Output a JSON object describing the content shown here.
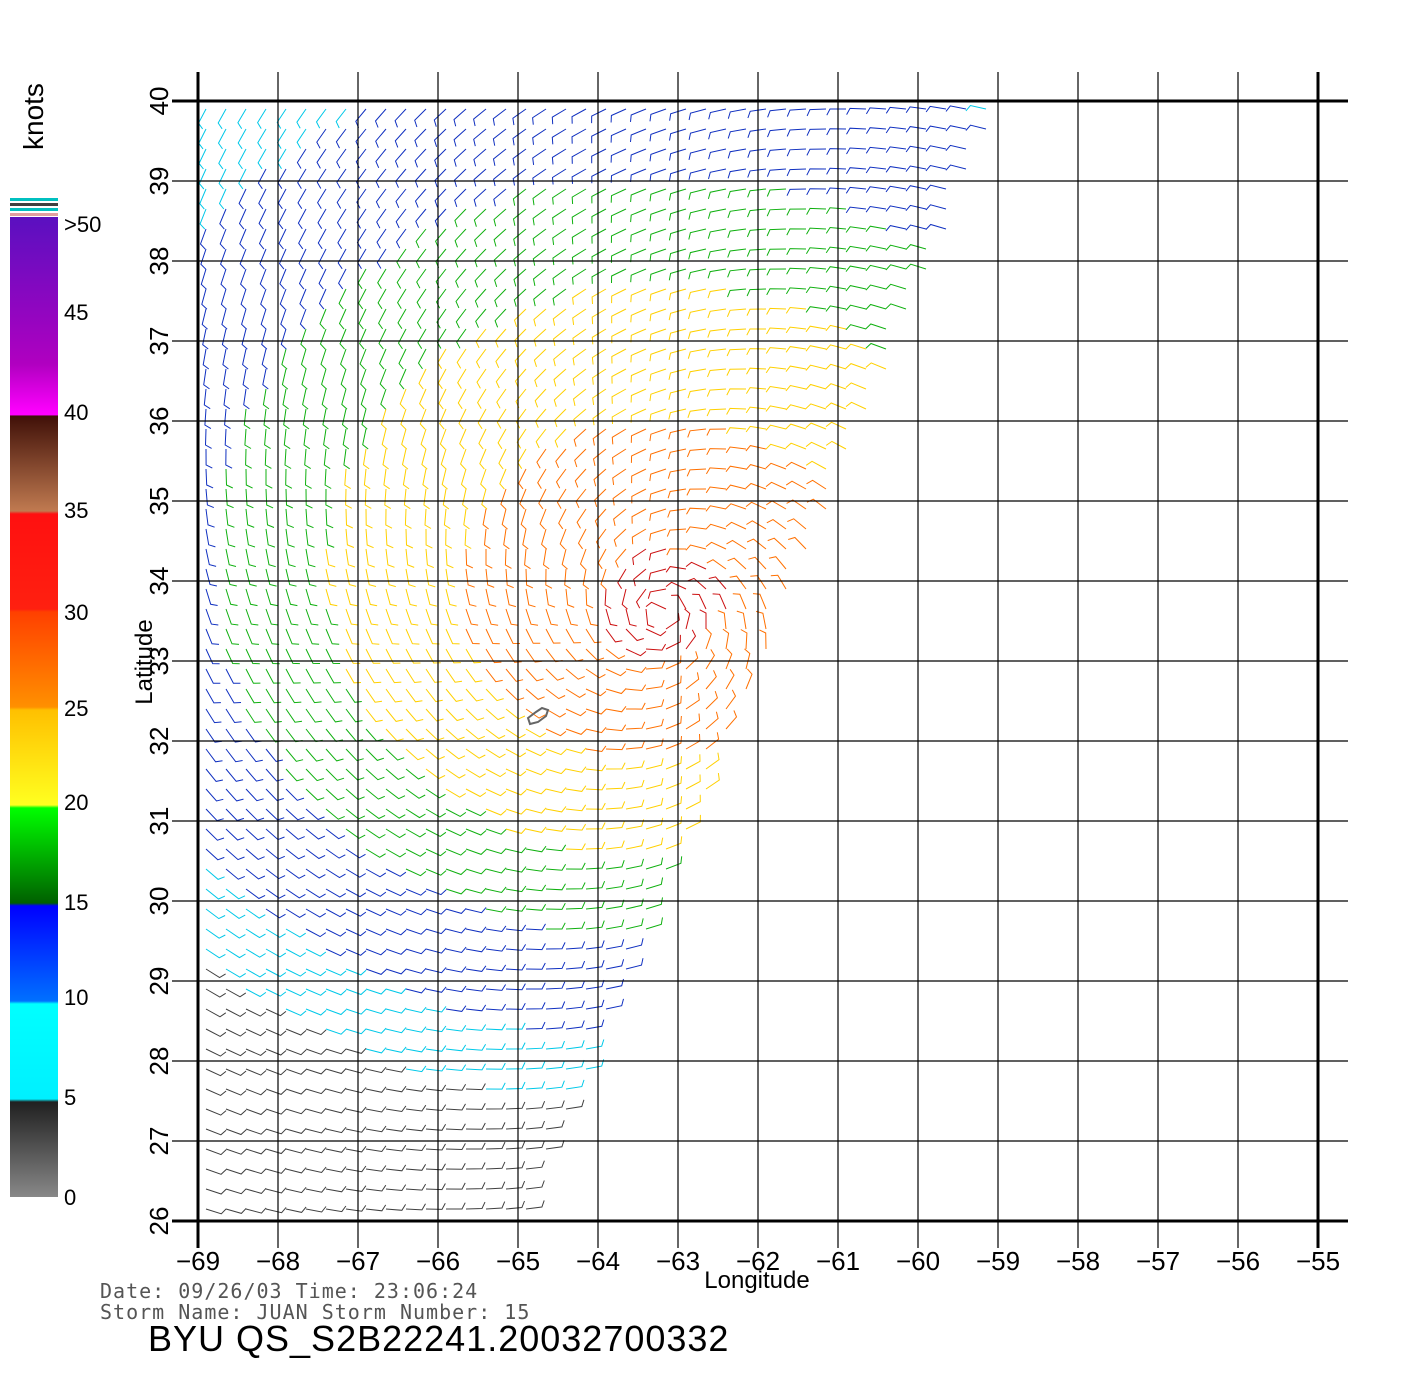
{
  "map": {
    "xlabel": "Longitude",
    "ylabel": "Latitude",
    "lon_ticks": [
      "-69",
      "-68",
      "-67",
      "-66",
      "-65",
      "-64",
      "-63",
      "-62",
      "-61",
      "-60",
      "-59",
      "-58",
      "-57",
      "-56",
      "-55"
    ],
    "lat_ticks": [
      "26",
      "27",
      "28",
      "29",
      "30",
      "31",
      "32",
      "33",
      "34",
      "35",
      "36",
      "37",
      "38",
      "39",
      "40"
    ],
    "lon_range": [
      -69,
      -55
    ],
    "lat_range": [
      26,
      40
    ],
    "grid": true
  },
  "colorbar": {
    "unit": "knots",
    "labels": [
      ">50",
      "45",
      "40",
      "35",
      "30",
      "25",
      "20",
      "15",
      "10",
      "5",
      "0"
    ],
    "colors": [
      "#6a0dad",
      "#ff00ff",
      "#5a3020",
      "#ff1010",
      "#ff6000",
      "#ffd000",
      "#00ff00",
      "#0000ff",
      "#00e0ff",
      "#222222",
      "#888888"
    ]
  },
  "info": {
    "line1": "Date: 09/26/03   Time: 23:06:24",
    "line2": "Storm Name: JUAN   Storm Number: 15",
    "title": "BYU QS_S2B22241.20032700332"
  }
}
